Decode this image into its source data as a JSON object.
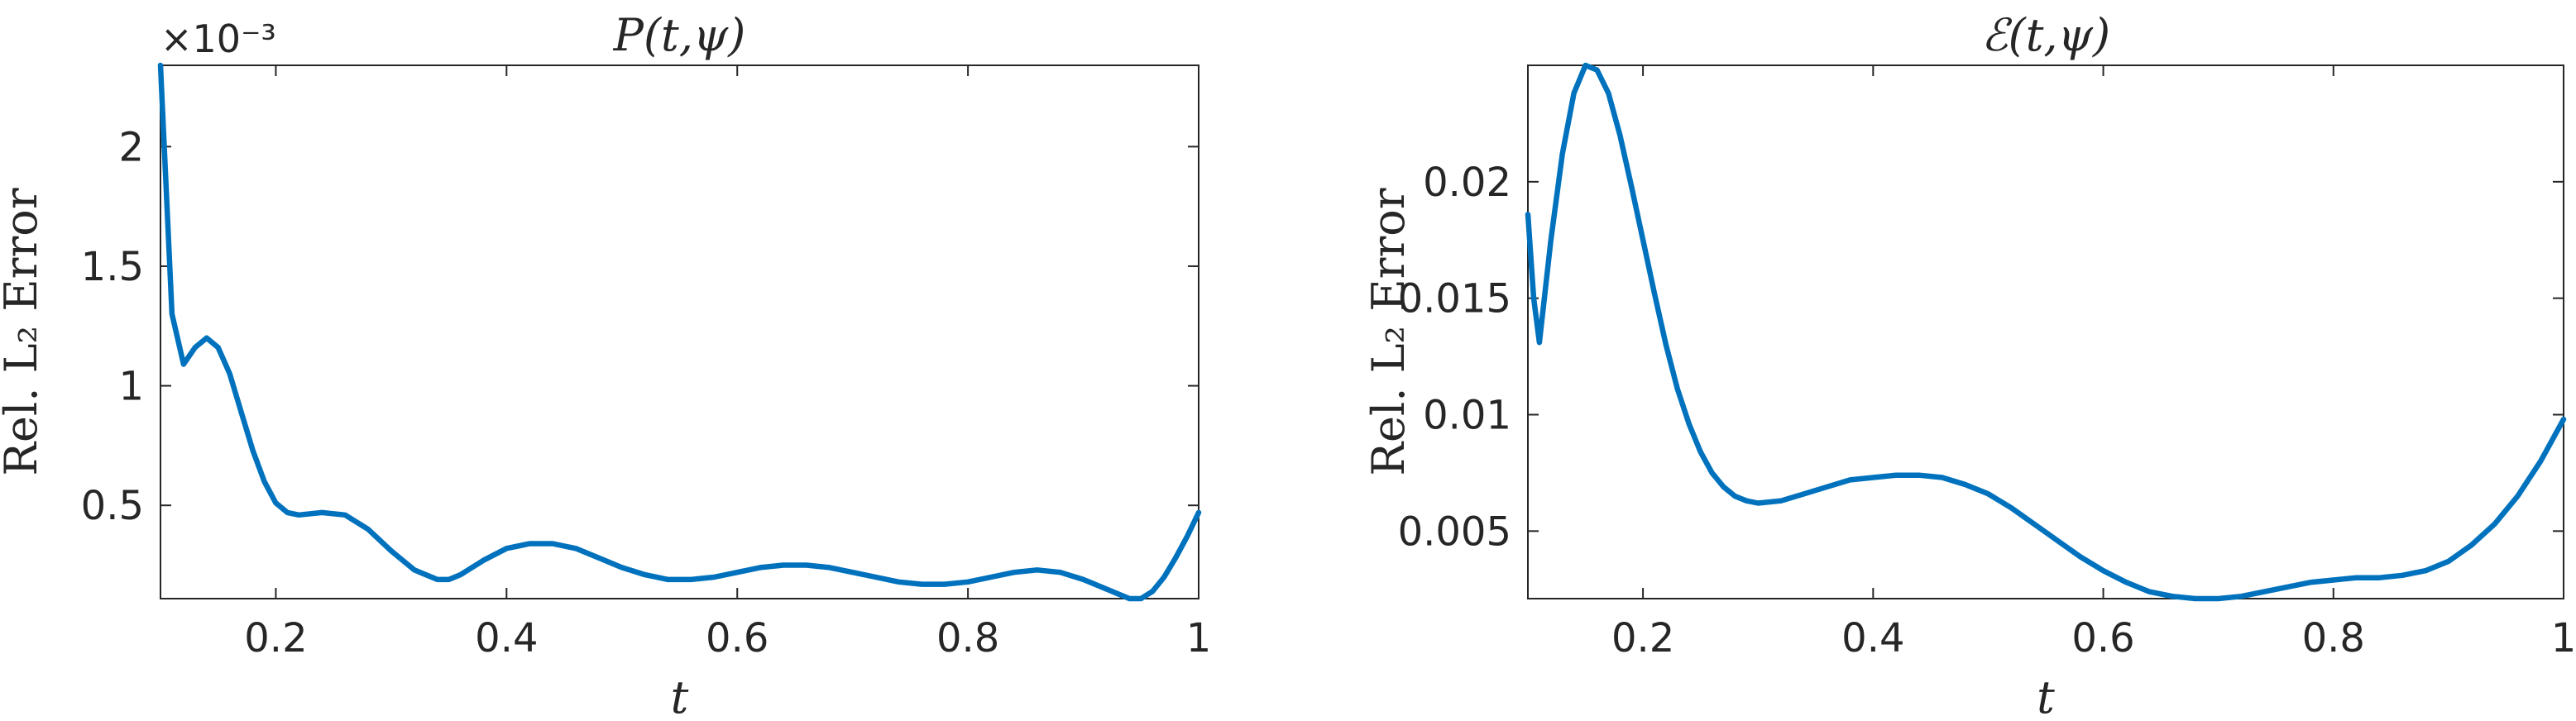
{
  "chart_data": [
    {
      "type": "line",
      "title": "P(t,ψ)",
      "xlabel": "t",
      "ylabel": "Rel. L₂ Error",
      "exponent_label": "×10⁻³",
      "xlim": [
        0.1,
        1.0
      ],
      "ylim": [
        0.00011,
        0.00234
      ],
      "xticks": [
        0.2,
        0.4,
        0.6,
        0.8,
        1.0
      ],
      "xtick_labels": [
        "0.2",
        "0.4",
        "0.6",
        "0.8",
        "1"
      ],
      "yticks": [
        0.0005,
        0.001,
        0.0015,
        0.002
      ],
      "ytick_labels": [
        "0.5",
        "1",
        "1.5",
        "2"
      ],
      "grid": false,
      "color": "#0072bd",
      "series": [
        {
          "x": [
            0.1,
            0.11,
            0.12,
            0.13,
            0.14,
            0.15,
            0.16,
            0.17,
            0.18,
            0.19,
            0.2,
            0.21,
            0.22,
            0.24,
            0.26,
            0.28,
            0.3,
            0.32,
            0.34,
            0.35,
            0.36,
            0.38,
            0.4,
            0.42,
            0.44,
            0.46,
            0.48,
            0.5,
            0.52,
            0.54,
            0.56,
            0.58,
            0.6,
            0.62,
            0.64,
            0.66,
            0.68,
            0.7,
            0.72,
            0.74,
            0.76,
            0.78,
            0.8,
            0.82,
            0.84,
            0.86,
            0.88,
            0.9,
            0.92,
            0.94,
            0.95,
            0.96,
            0.97,
            0.98,
            0.99,
            1.0
          ],
          "y": [
            0.00234,
            0.0013,
            0.00109,
            0.00116,
            0.0012,
            0.00116,
            0.00105,
            0.00089,
            0.00073,
            0.0006,
            0.00051,
            0.00047,
            0.00046,
            0.00047,
            0.00046,
            0.0004,
            0.00031,
            0.00023,
            0.00019,
            0.00019,
            0.00021,
            0.00027,
            0.00032,
            0.00034,
            0.00034,
            0.00032,
            0.00028,
            0.00024,
            0.00021,
            0.00019,
            0.00019,
            0.0002,
            0.00022,
            0.00024,
            0.00025,
            0.00025,
            0.00024,
            0.00022,
            0.0002,
            0.00018,
            0.00017,
            0.00017,
            0.00018,
            0.0002,
            0.00022,
            0.00023,
            0.00022,
            0.00019,
            0.00015,
            0.00011,
            0.00011,
            0.00014,
            0.0002,
            0.00028,
            0.00037,
            0.00047
          ]
        }
      ]
    },
    {
      "type": "line",
      "title": "ℰ(t,ψ)",
      "xlabel": "t",
      "ylabel": "Rel. L₂ Error",
      "xlim": [
        0.1,
        1.0
      ],
      "ylim": [
        0.0021,
        0.025
      ],
      "xticks": [
        0.2,
        0.4,
        0.6,
        0.8,
        1.0
      ],
      "xtick_labels": [
        "0.2",
        "0.4",
        "0.6",
        "0.8",
        "1"
      ],
      "yticks": [
        0.005,
        0.01,
        0.015,
        0.02
      ],
      "ytick_labels": [
        "0.005",
        "0.01",
        "0.015",
        "0.02"
      ],
      "grid": false,
      "color": "#0072bd",
      "series": [
        {
          "x": [
            0.1,
            0.105,
            0.11,
            0.12,
            0.13,
            0.14,
            0.15,
            0.16,
            0.17,
            0.18,
            0.19,
            0.2,
            0.21,
            0.22,
            0.23,
            0.24,
            0.25,
            0.26,
            0.27,
            0.28,
            0.29,
            0.3,
            0.32,
            0.34,
            0.36,
            0.38,
            0.4,
            0.42,
            0.44,
            0.46,
            0.48,
            0.5,
            0.52,
            0.54,
            0.56,
            0.58,
            0.6,
            0.62,
            0.64,
            0.66,
            0.68,
            0.7,
            0.72,
            0.74,
            0.76,
            0.78,
            0.8,
            0.82,
            0.84,
            0.86,
            0.88,
            0.9,
            0.92,
            0.94,
            0.96,
            0.98,
            1.0
          ],
          "y": [
            0.0186,
            0.015,
            0.0131,
            0.0175,
            0.0212,
            0.0238,
            0.025,
            0.0248,
            0.0238,
            0.022,
            0.0198,
            0.0175,
            0.0152,
            0.013,
            0.0111,
            0.0096,
            0.0084,
            0.0075,
            0.0069,
            0.0065,
            0.0063,
            0.0062,
            0.0063,
            0.0066,
            0.0069,
            0.0072,
            0.0073,
            0.0074,
            0.0074,
            0.0073,
            0.007,
            0.0066,
            0.006,
            0.0053,
            0.0046,
            0.0039,
            0.0033,
            0.0028,
            0.0024,
            0.0022,
            0.0021,
            0.0021,
            0.0022,
            0.0024,
            0.0026,
            0.0028,
            0.0029,
            0.003,
            0.003,
            0.0031,
            0.0033,
            0.0037,
            0.0044,
            0.0053,
            0.0065,
            0.008,
            0.0098
          ]
        }
      ]
    }
  ]
}
